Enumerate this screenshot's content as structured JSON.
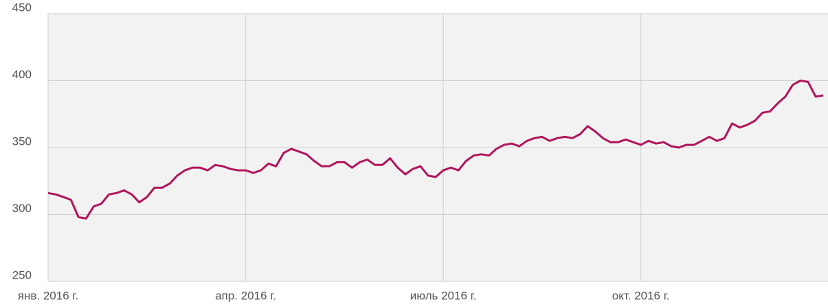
{
  "chart_data": {
    "type": "line",
    "categories": [
      "янв. 2016 г.",
      null,
      null,
      null,
      null,
      null,
      null,
      null,
      null,
      null,
      null,
      null,
      null,
      null,
      null,
      null,
      null,
      null,
      null,
      null,
      null,
      null,
      null,
      null,
      null,
      null,
      "апр. 2016 г.",
      null,
      null,
      null,
      null,
      null,
      null,
      null,
      null,
      null,
      null,
      null,
      null,
      null,
      null,
      null,
      null,
      null,
      null,
      null,
      null,
      null,
      null,
      null,
      null,
      null,
      "июль 2016 г.",
      null,
      null,
      null,
      null,
      null,
      null,
      null,
      null,
      null,
      null,
      null,
      null,
      null,
      null,
      null,
      null,
      null,
      null,
      null,
      null,
      null,
      null,
      null,
      null,
      null,
      "окт. 2016 г.",
      null,
      null,
      null,
      null,
      null,
      null,
      null,
      null,
      null,
      null,
      null,
      null,
      null,
      null,
      null,
      null,
      null,
      null,
      null,
      null,
      null,
      null,
      null,
      null
    ],
    "values": [
      316,
      315,
      313,
      311,
      298,
      297,
      306,
      308,
      315,
      316,
      318,
      315,
      309,
      313,
      320,
      320,
      323,
      329,
      333,
      335,
      335,
      333,
      337,
      336,
      334,
      333,
      333,
      331,
      333,
      338,
      336,
      346,
      349,
      347,
      345,
      340,
      336,
      336,
      339,
      339,
      335,
      339,
      341,
      337,
      337,
      342,
      335,
      330,
      334,
      336,
      329,
      328,
      333,
      335,
      333,
      340,
      344,
      345,
      344,
      349,
      352,
      353,
      351,
      355,
      357,
      358,
      355,
      357,
      358,
      357,
      360,
      366,
      362,
      357,
      354,
      354,
      356,
      354,
      352,
      355,
      353,
      354,
      351,
      350,
      352,
      352,
      355,
      358,
      355,
      357,
      368,
      365,
      367,
      370,
      376,
      377,
      383,
      388,
      397,
      400,
      399,
      388,
      389
    ],
    "color": "#b0145a",
    "ylim": [
      250,
      450
    ],
    "yticks": [
      250,
      300,
      350,
      400,
      450
    ],
    "grid": true
  }
}
